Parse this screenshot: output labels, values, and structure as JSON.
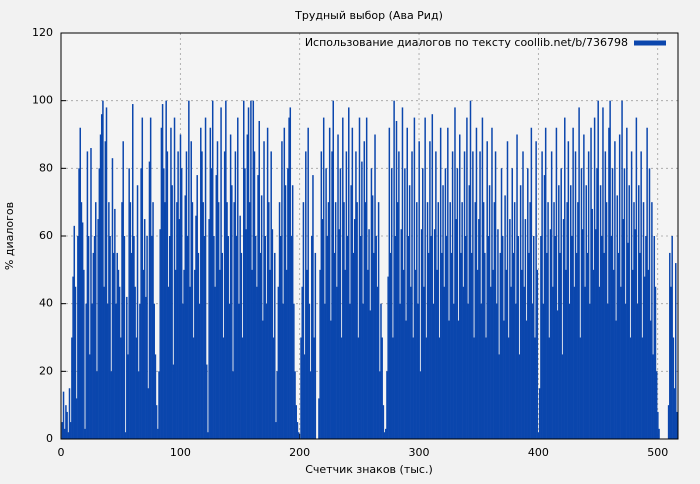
{
  "chart_data": {
    "type": "bar",
    "title": "Трудный выбор (Ава Рид)",
    "xlabel": "Счетчик знаков (тыс.)",
    "ylabel": "% диалогов",
    "xlim": [
      0,
      517
    ],
    "xticks": [
      0,
      100,
      200,
      300,
      400,
      500
    ],
    "ylim": [
      0,
      120
    ],
    "yticks": [
      0,
      20,
      40,
      60,
      80,
      100,
      120
    ],
    "grid": true,
    "legend_position": "top-right",
    "series": [
      {
        "name": "Использование диалогов по тексту coollib.net/b/736798",
        "color": "#0b46ad",
        "x": [
          1,
          2,
          3,
          4,
          5,
          6,
          7,
          8,
          9,
          10,
          11,
          12,
          13,
          14,
          15,
          16,
          17,
          18,
          19,
          20,
          21,
          22,
          23,
          24,
          25,
          26,
          27,
          28,
          29,
          30,
          31,
          32,
          33,
          34,
          35,
          36,
          37,
          38,
          39,
          40,
          41,
          42,
          43,
          44,
          45,
          46,
          47,
          48,
          49,
          50,
          51,
          52,
          53,
          54,
          55,
          56,
          57,
          58,
          59,
          60,
          61,
          62,
          63,
          64,
          65,
          66,
          67,
          68,
          69,
          70,
          71,
          72,
          73,
          74,
          75,
          76,
          77,
          78,
          79,
          80,
          81,
          82,
          83,
          84,
          85,
          86,
          87,
          88,
          89,
          90,
          91,
          92,
          93,
          94,
          95,
          96,
          97,
          98,
          99,
          100,
          101,
          102,
          103,
          104,
          105,
          106,
          107,
          108,
          109,
          110,
          111,
          112,
          113,
          114,
          115,
          116,
          117,
          118,
          119,
          120,
          121,
          122,
          123,
          124,
          125,
          126,
          127,
          128,
          129,
          130,
          131,
          132,
          133,
          134,
          135,
          136,
          137,
          138,
          139,
          140,
          141,
          142,
          143,
          144,
          145,
          146,
          147,
          148,
          149,
          150,
          151,
          152,
          153,
          154,
          155,
          156,
          157,
          158,
          159,
          160,
          161,
          162,
          163,
          164,
          165,
          166,
          167,
          168,
          169,
          170,
          171,
          172,
          173,
          174,
          175,
          176,
          177,
          178,
          179,
          180,
          181,
          182,
          183,
          184,
          185,
          186,
          187,
          188,
          189,
          190,
          191,
          192,
          193,
          194,
          195,
          196,
          197,
          198,
          199,
          200,
          201,
          202,
          203,
          204,
          205,
          206,
          207,
          208,
          209,
          210,
          211,
          212,
          213,
          214,
          215,
          216,
          217,
          218,
          219,
          220,
          221,
          222,
          223,
          224,
          225,
          226,
          227,
          228,
          229,
          230,
          231,
          232,
          233,
          234,
          235,
          236,
          237,
          238,
          239,
          240,
          241,
          242,
          243,
          244,
          245,
          246,
          247,
          248,
          249,
          250,
          251,
          252,
          253,
          254,
          255,
          256,
          257,
          258,
          259,
          260,
          261,
          262,
          263,
          264,
          265,
          266,
          267,
          268,
          269,
          270,
          271,
          272,
          273,
          274,
          275,
          276,
          277,
          278,
          279,
          280,
          281,
          282,
          283,
          284,
          285,
          286,
          287,
          288,
          289,
          290,
          291,
          292,
          293,
          294,
          295,
          296,
          297,
          298,
          299,
          300,
          301,
          302,
          303,
          304,
          305,
          306,
          307,
          308,
          309,
          310,
          311,
          312,
          313,
          314,
          315,
          316,
          317,
          318,
          319,
          320,
          321,
          322,
          323,
          324,
          325,
          326,
          327,
          328,
          329,
          330,
          331,
          332,
          333,
          334,
          335,
          336,
          337,
          338,
          339,
          340,
          341,
          342,
          343,
          344,
          345,
          346,
          347,
          348,
          349,
          350,
          351,
          352,
          353,
          354,
          355,
          356,
          357,
          358,
          359,
          360,
          361,
          362,
          363,
          364,
          365,
          366,
          367,
          368,
          369,
          370,
          371,
          372,
          373,
          374,
          375,
          376,
          377,
          378,
          379,
          380,
          381,
          382,
          383,
          384,
          385,
          386,
          387,
          388,
          389,
          390,
          391,
          392,
          393,
          394,
          395,
          396,
          397,
          398,
          399,
          400,
          401,
          402,
          403,
          404,
          405,
          406,
          407,
          408,
          409,
          410,
          411,
          412,
          413,
          414,
          415,
          416,
          417,
          418,
          419,
          420,
          421,
          422,
          423,
          424,
          425,
          426,
          427,
          428,
          429,
          430,
          431,
          432,
          433,
          434,
          435,
          436,
          437,
          438,
          439,
          440,
          441,
          442,
          443,
          444,
          445,
          446,
          447,
          448,
          449,
          450,
          451,
          452,
          453,
          454,
          455,
          456,
          457,
          458,
          459,
          460,
          461,
          462,
          463,
          464,
          465,
          466,
          467,
          468,
          469,
          470,
          471,
          472,
          473,
          474,
          475,
          476,
          477,
          478,
          479,
          480,
          481,
          482,
          483,
          484,
          485,
          486,
          487,
          488,
          489,
          490,
          491,
          492,
          493,
          494,
          495,
          496,
          497,
          498,
          499,
          500,
          501,
          502,
          503,
          504,
          505,
          506,
          507,
          508,
          509,
          510,
          511,
          512,
          513,
          514,
          515,
          516
        ],
        "values": [
          5,
          14,
          3,
          10,
          8,
          2,
          15,
          5,
          30,
          48,
          63,
          45,
          12,
          60,
          80,
          92,
          70,
          64,
          50,
          3,
          40,
          85,
          60,
          25,
          86,
          40,
          55,
          60,
          70,
          20,
          65,
          80,
          90,
          96,
          100,
          45,
          88,
          98,
          40,
          70,
          60,
          20,
          83,
          55,
          68,
          40,
          55,
          50,
          45,
          30,
          70,
          88,
          60,
          2,
          42,
          25,
          80,
          70,
          55,
          99,
          60,
          45,
          30,
          75,
          20,
          40,
          80,
          95,
          50,
          65,
          42,
          60,
          15,
          82,
          95,
          60,
          70,
          40,
          25,
          10,
          3,
          20,
          62,
          92,
          99,
          80,
          70,
          100,
          85,
          45,
          60,
          92,
          75,
          22,
          95,
          50,
          70,
          85,
          65,
          90,
          80,
          40,
          50,
          72,
          85,
          60,
          100,
          45,
          88,
          70,
          30,
          50,
          66,
          78,
          55,
          40,
          92,
          85,
          70,
          60,
          95,
          22,
          2,
          65,
          92,
          80,
          100,
          60,
          45,
          78,
          88,
          70,
          50,
          98,
          55,
          30,
          85,
          100,
          70,
          60,
          40,
          90,
          75,
          20,
          70,
          85,
          60,
          95,
          40,
          66,
          55,
          30,
          100,
          80,
          62,
          90,
          98,
          70,
          100,
          50,
          100,
          85,
          60,
          45,
          78,
          94,
          55,
          72,
          35,
          88,
          60,
          40,
          92,
          70,
          50,
          85,
          62,
          30,
          55,
          5,
          20,
          45,
          70,
          60,
          88,
          40,
          92,
          75,
          50,
          80,
          95,
          98,
          60,
          75,
          40,
          20,
          10,
          5,
          2,
          0,
          30,
          45,
          70,
          25,
          85,
          50,
          92,
          40,
          20,
          60,
          78,
          30,
          55,
          0,
          0,
          12,
          50,
          85,
          65,
          95,
          40,
          80,
          60,
          70,
          92,
          35,
          85,
          100,
          55,
          70,
          45,
          90,
          62,
          80,
          30,
          95,
          70,
          50,
          85,
          60,
          98,
          40,
          75,
          92,
          55,
          65,
          85,
          70,
          30,
          95,
          60,
          82,
          40,
          88,
          70,
          95,
          50,
          62,
          38,
          80,
          72,
          55,
          90,
          60,
          45,
          70,
          20,
          40,
          30,
          10,
          2,
          3,
          20,
          48,
          92,
          55,
          80,
          30,
          100,
          60,
          94,
          70,
          85,
          40,
          62,
          98,
          50,
          80,
          35,
          92,
          60,
          75,
          45,
          85,
          30,
          95,
          50,
          70,
          40,
          88,
          20,
          62,
          80,
          45,
          95,
          30,
          70,
          55,
          88,
          60,
          96,
          40,
          62,
          85,
          50,
          70,
          30,
          92,
          55,
          75,
          45,
          80,
          60,
          92,
          35,
          70,
          55,
          85,
          40,
          98,
          65,
          80,
          35,
          90,
          55,
          70,
          45,
          85,
          60,
          95,
          40,
          75,
          100,
          55,
          85,
          30,
          70,
          92,
          50,
          65,
          85,
          40,
          95,
          70,
          55,
          30,
          88,
          60,
          75,
          45,
          92,
          50,
          70,
          85,
          40,
          62,
          25,
          55,
          80,
          60,
          35,
          72,
          50,
          88,
          30,
          65,
          45,
          80,
          55,
          70,
          40,
          90,
          60,
          25,
          75,
          50,
          85,
          45,
          65,
          35,
          80,
          55,
          70,
          92,
          40,
          60,
          30,
          88,
          50,
          2,
          15,
          60,
          85,
          40,
          78,
          92,
          55,
          70,
          30,
          62,
          85,
          45,
          70,
          60,
          92,
          38,
          75,
          55,
          80,
          25,
          65,
          95,
          50,
          70,
          88,
          40,
          75,
          60,
          92,
          45,
          85,
          55,
          70,
          98,
          30,
          80,
          62,
          90,
          45,
          75,
          55,
          85,
          40,
          92,
          68,
          50,
          95,
          62,
          80,
          100,
          45,
          75,
          60,
          98,
          55,
          85,
          70,
          40,
          92,
          100,
          60,
          80,
          50,
          88,
          35,
          72,
          55,
          90,
          45,
          100,
          65,
          80,
          40,
          92,
          58,
          75,
          30,
          85,
          50,
          70,
          62,
          95,
          40,
          75,
          55,
          85,
          30,
          70,
          48,
          60,
          92,
          50,
          80,
          35,
          70,
          25,
          60,
          45,
          20,
          8,
          3,
          0,
          0,
          0,
          0,
          0,
          0,
          0,
          10,
          55,
          45,
          60,
          30,
          15,
          52,
          8
        ]
      }
    ]
  }
}
